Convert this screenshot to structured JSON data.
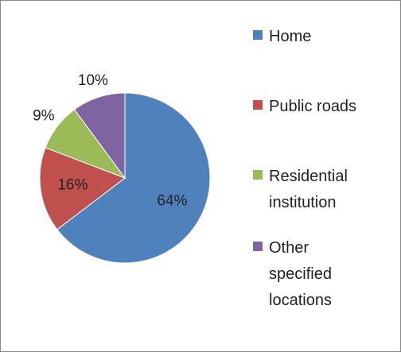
{
  "chart_data": {
    "type": "pie",
    "categories": [
      "Home",
      "Public roads",
      "Residential institution",
      "Other specified locations"
    ],
    "values": [
      64,
      16,
      9,
      10
    ],
    "value_labels": [
      "64%",
      "16%",
      "9%",
      "10%"
    ],
    "colors": [
      "#4f81bd",
      "#c0504d",
      "#9bbb59",
      "#8064a2"
    ],
    "legend": "right"
  }
}
